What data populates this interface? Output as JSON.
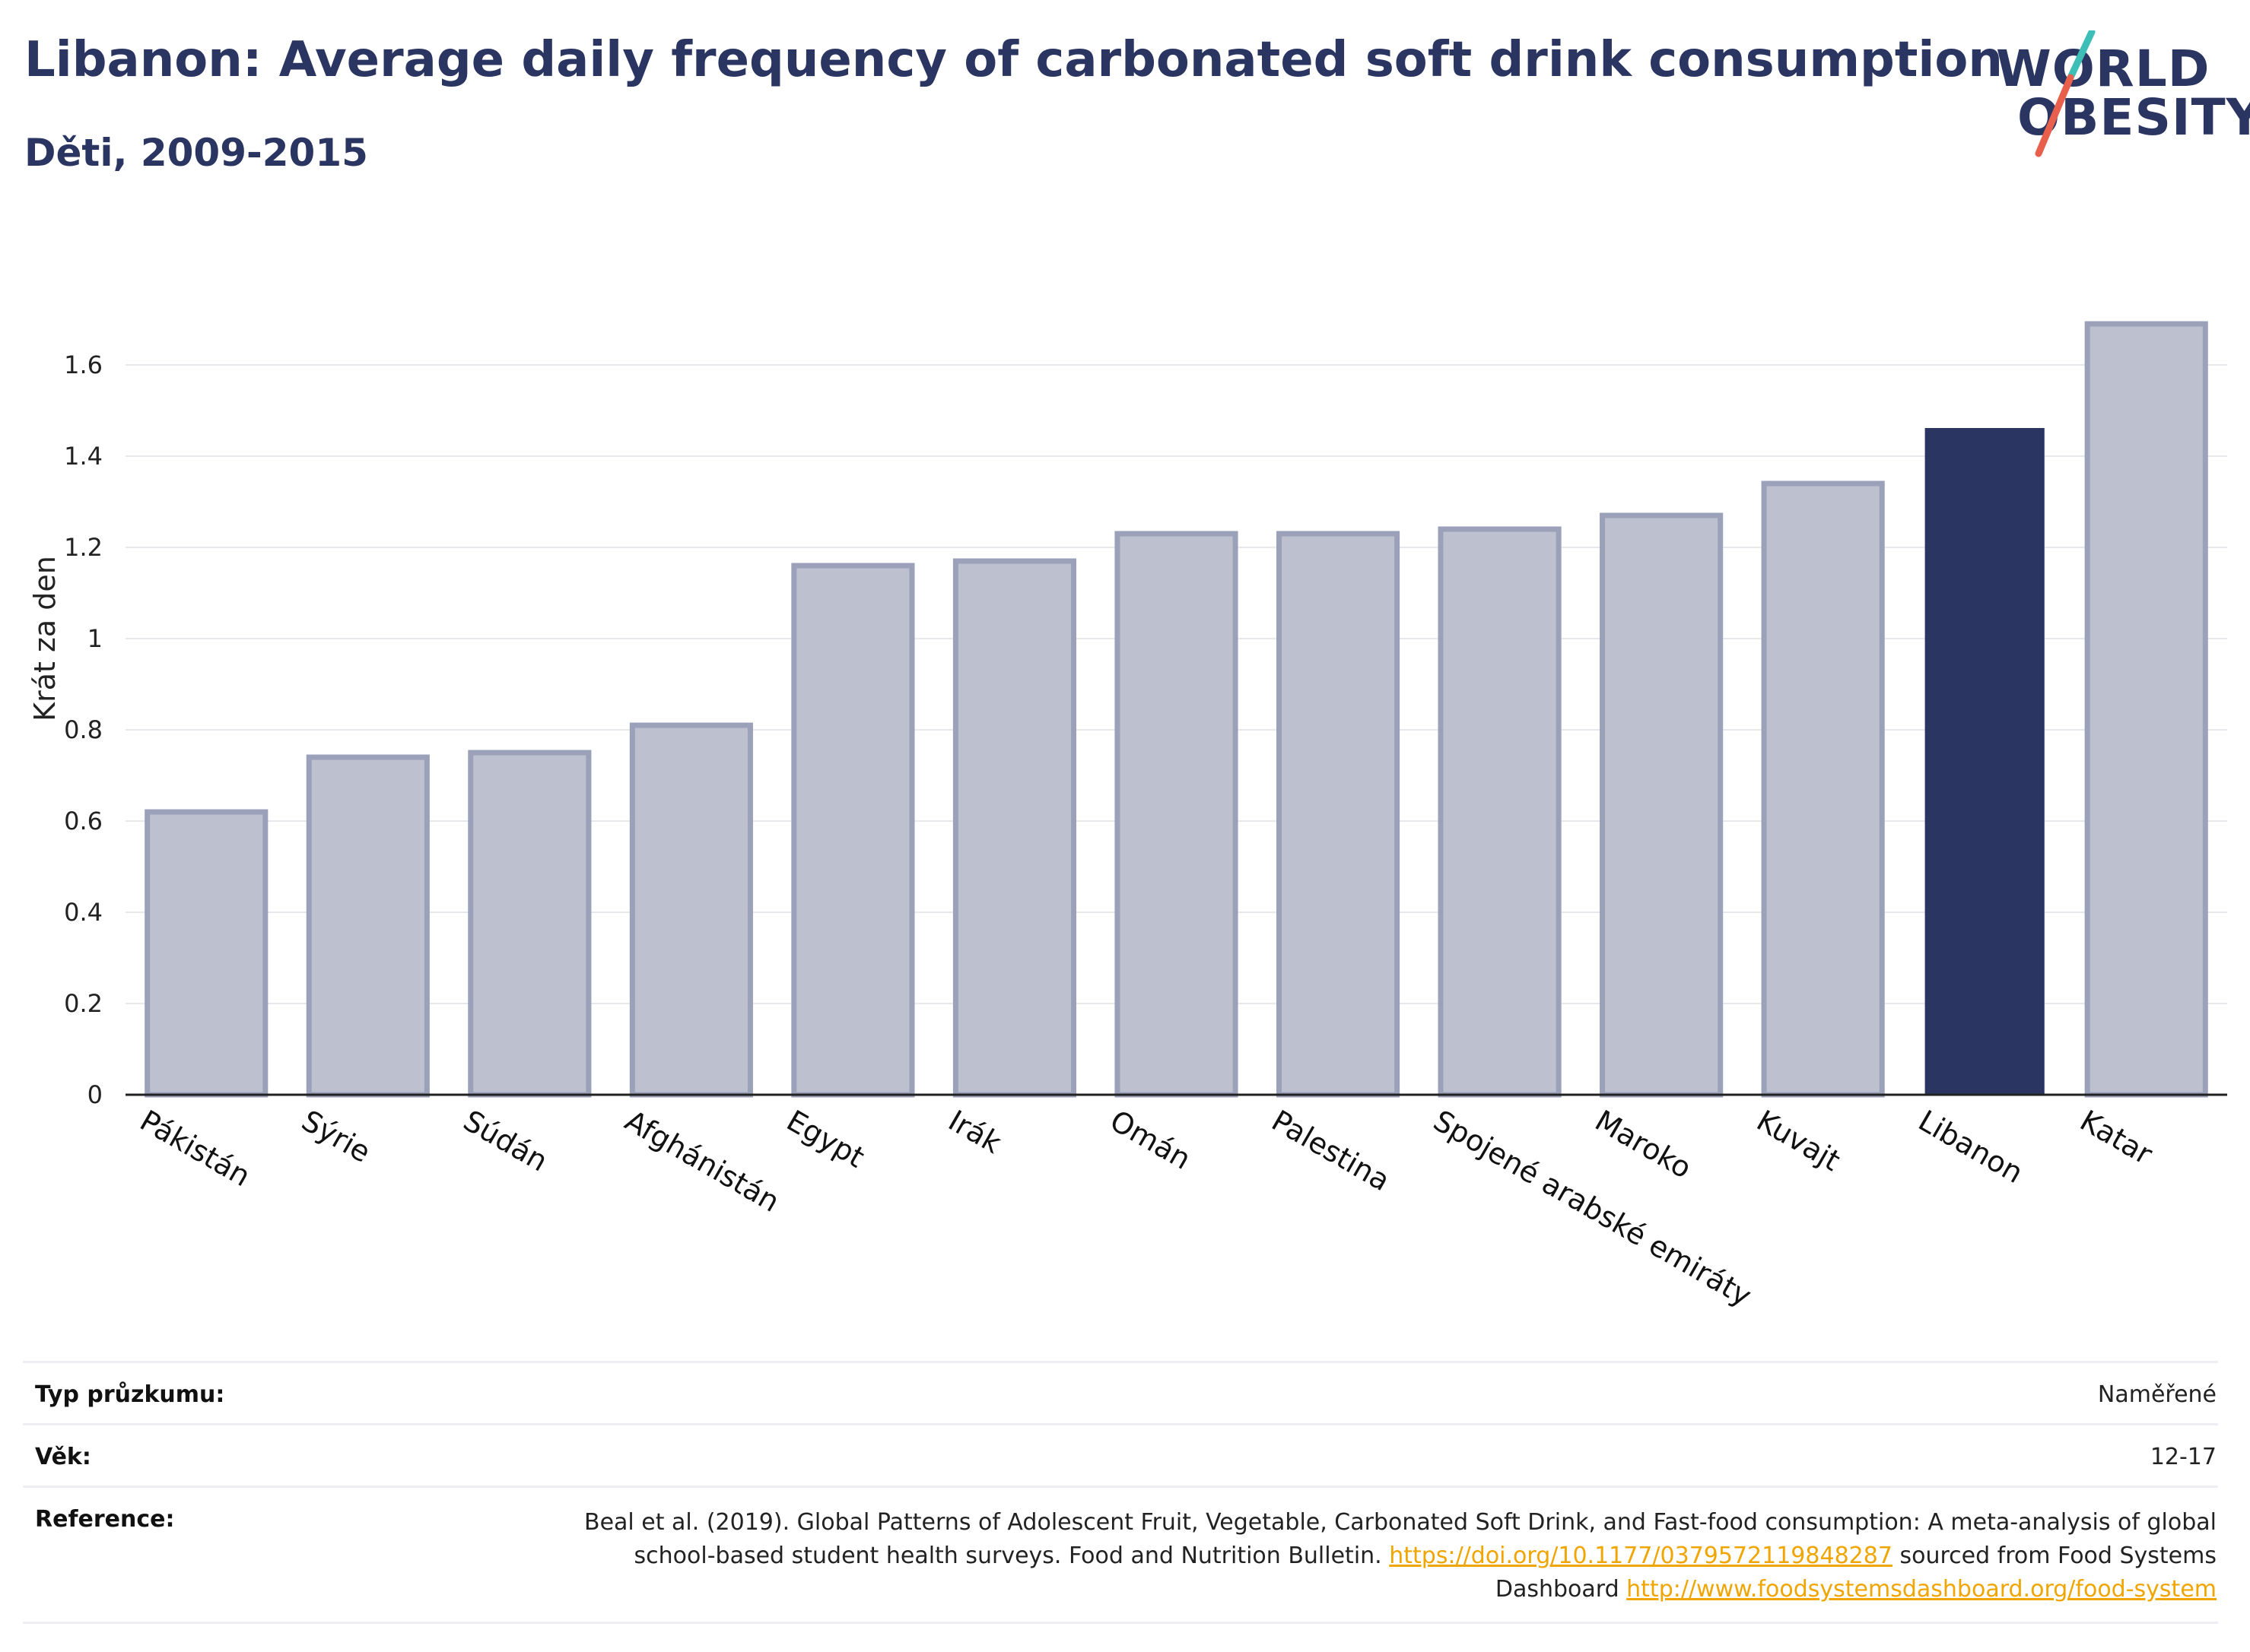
{
  "title": "Libanon: Average daily frequency of carbonated soft drink consumption",
  "subtitle": "Děti, 2009-2015",
  "logo": {
    "line1": "WORLD",
    "line2": "OBESITY",
    "accent_teal": "#3dbfb8",
    "accent_red": "#e8604c"
  },
  "colors": {
    "highlight_bar": "#2b3561",
    "other_bar_fill": "#bdc0ce",
    "other_bar_edge": "#9ba1b8",
    "title": "#2b3561",
    "link": "#f0a500"
  },
  "chart_data": {
    "type": "bar",
    "title": "Libanon: Average daily frequency of carbonated soft drink consumption",
    "subtitle": "Děti, 2009-2015",
    "ylabel": "Krát za den",
    "xlabel": "",
    "ylim": [
      0,
      1.75
    ],
    "yticks": [
      0,
      0.2,
      0.4,
      0.6,
      0.8,
      1,
      1.2,
      1.4,
      1.6
    ],
    "ytick_labels": [
      "0",
      "0.2",
      "0.4",
      "0.6",
      "0.8",
      "1",
      "1.2",
      "1.4",
      "1.6"
    ],
    "grid": true,
    "categories": [
      "Pákistán",
      "Sýrie",
      "Súdán",
      "Afghánistán",
      "Egypt",
      "Irák",
      "Omán",
      "Palestina",
      "Spojené arabské emiráty",
      "Maroko",
      "Kuvajt",
      "Libanon",
      "Katar"
    ],
    "values": [
      0.62,
      0.74,
      0.75,
      0.81,
      1.16,
      1.17,
      1.23,
      1.23,
      1.24,
      1.27,
      1.34,
      1.46,
      1.69
    ],
    "highlight": "Libanon"
  },
  "meta": [
    {
      "key": "Typ průzkumu:",
      "value": "Naměřené"
    },
    {
      "key": "Věk:",
      "value": "12-17"
    }
  ],
  "reference": {
    "key": "Reference:",
    "text1": "Beal et al. (2019). Global Patterns of Adolescent Fruit, Vegetable, Carbonated Soft Drink, and Fast-food consumption: A meta-analysis of global school-based student health surveys. Food and Nutrition Bulletin. ",
    "link1": "https://doi.org/10.1177/0379572119848287",
    "text2": " sourced from Food Systems Dashboard ",
    "link2": "http://www.foodsystemsdashboard.org/food-system"
  }
}
